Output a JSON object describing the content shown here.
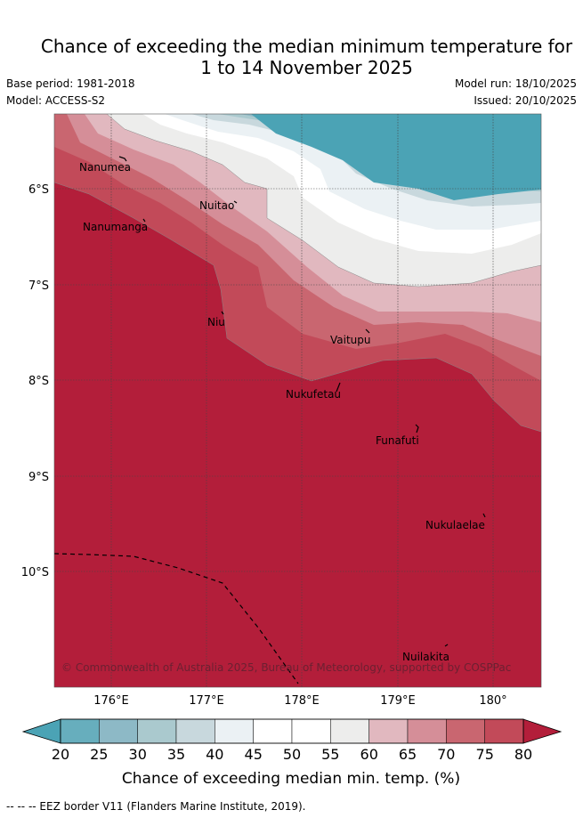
{
  "header": {
    "title_line1": "Chance of exceeding the median minimum temperature for",
    "title_line2": "1 to 14 November 2025",
    "base_period": "Base period: 1981-2018",
    "model": "Model: ACCESS-S2",
    "model_run": "Model run: 18/10/2025",
    "issued": "Issued: 20/10/2025"
  },
  "map": {
    "x_ticks": [
      "176°E",
      "177°E",
      "178°E",
      "179°E",
      "180°"
    ],
    "y_ticks": [
      "6°S",
      "7°S",
      "8°S",
      "9°S",
      "10°S"
    ],
    "places": [
      "Nanumea",
      "Nanumanga",
      "Nuitao",
      "Niu",
      "Vaitupu",
      "Nukufetau",
      "Funafuti",
      "Nukulaelae",
      "Nuilakita"
    ],
    "copyright": "© Commonwealth of Australia 2025, Bureau of Meteorology, supported by COSPPac"
  },
  "colorbar": {
    "ticks": [
      "20",
      "25",
      "30",
      "35",
      "40",
      "45",
      "50",
      "55",
      "60",
      "65",
      "70",
      "75",
      "80"
    ],
    "colors": [
      "#67aebd",
      "#8db9c6",
      "#aac9ce",
      "#c8d8dd",
      "#ebf1f4",
      "#ffffff",
      "#ffffff",
      "#ededec",
      "#e1b8bf",
      "#d58e98",
      "#c96670",
      "#c24a59"
    ],
    "low_color": "#4ba3b5",
    "high_color": "#b31e3a",
    "label": "Chance of exceeding median min. temp. (%)"
  },
  "footer": {
    "eez_note": "--  --  -- EEZ border V11 (Flanders Marine Institute, 2019)."
  }
}
